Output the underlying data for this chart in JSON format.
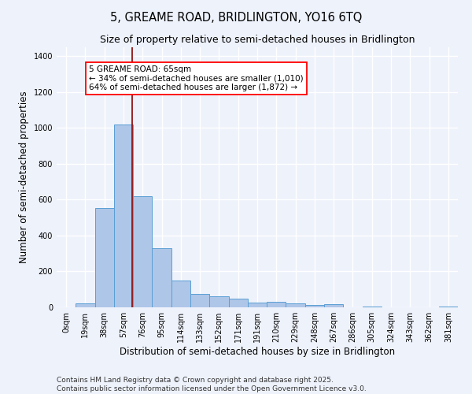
{
  "title_line1": "5, GREAME ROAD, BRIDLINGTON, YO16 6TQ",
  "title_line2": "Size of property relative to semi-detached houses in Bridlington",
  "xlabel": "Distribution of semi-detached houses by size in Bridlington",
  "ylabel": "Number of semi-detached properties",
  "bar_labels": [
    "0sqm",
    "19sqm",
    "38sqm",
    "57sqm",
    "76sqm",
    "95sqm",
    "114sqm",
    "133sqm",
    "152sqm",
    "171sqm",
    "191sqm",
    "210sqm",
    "229sqm",
    "248sqm",
    "267sqm",
    "286sqm",
    "305sqm",
    "324sqm",
    "343sqm",
    "362sqm",
    "381sqm"
  ],
  "bar_values": [
    0,
    20,
    555,
    1020,
    620,
    330,
    150,
    75,
    62,
    50,
    27,
    30,
    20,
    12,
    18,
    0,
    5,
    0,
    0,
    0,
    5
  ],
  "bar_color": "#aec6e8",
  "bar_edge_color": "#5a9fd4",
  "red_line_x": 3.47,
  "annotation_text": "5 GREAME ROAD: 65sqm\n← 34% of semi-detached houses are smaller (1,010)\n64% of semi-detached houses are larger (1,872) →",
  "annotation_box_color": "white",
  "annotation_box_edge_color": "red",
  "red_line_color": "#8b0000",
  "ylim": [
    0,
    1450
  ],
  "yticks": [
    0,
    200,
    400,
    600,
    800,
    1000,
    1200,
    1400
  ],
  "background_color": "#eef2fb",
  "grid_color": "#ffffff",
  "footer_line1": "Contains HM Land Registry data © Crown copyright and database right 2025.",
  "footer_line2": "Contains public sector information licensed under the Open Government Licence v3.0.",
  "title_fontsize": 10.5,
  "subtitle_fontsize": 9,
  "axis_label_fontsize": 8.5,
  "tick_fontsize": 7,
  "footer_fontsize": 6.5
}
